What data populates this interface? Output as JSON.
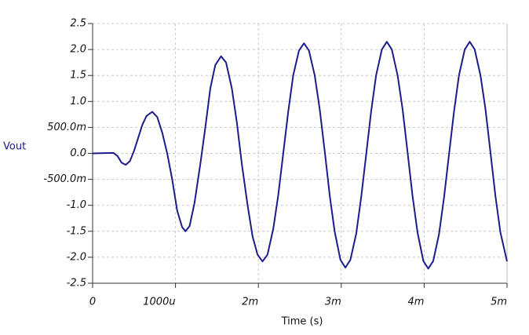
{
  "chart_data": {
    "type": "line",
    "y_label": "Vout",
    "x_label": "Time (s)",
    "xlim": [
      0,
      0.005
    ],
    "ylim": [
      -2.5,
      2.5
    ],
    "xticks": [
      0,
      {
        "value": 0.001,
        "label": "1000u"
      },
      {
        "value": 0.002,
        "label": "2m"
      },
      {
        "value": 0.003,
        "label": "3m"
      },
      {
        "value": 0.004,
        "label": "4m"
      },
      {
        "value": 0.005,
        "label": "5m"
      }
    ],
    "yticks": [
      2.5,
      {
        "value": 2,
        "label": "2.0"
      },
      1.5,
      {
        "value": 1,
        "label": "1.0"
      },
      {
        "value": 0.5,
        "label": "500.0m"
      },
      {
        "value": 0,
        "label": "0.0"
      },
      {
        "value": -0.5,
        "label": "-500.0m"
      },
      {
        "value": -1,
        "label": "-1.0"
      },
      -1.5,
      {
        "value": -2,
        "label": "-2.0"
      },
      -2.5
    ],
    "grid": true,
    "series": [
      {
        "color": "#1c1c8a",
        "x": [
          0,
          0.00025,
          0.0003,
          0.00035,
          0.0004,
          0.00045,
          0.0005,
          0.00055,
          0.0006,
          0.00065,
          0.00072,
          0.00078,
          0.00084,
          0.0009,
          0.00096,
          0.00102,
          0.00108,
          0.00112,
          0.00117,
          0.00123,
          0.0013,
          0.00136,
          0.00142,
          0.00148,
          0.00155,
          0.00161,
          0.00168,
          0.00174,
          0.0018,
          0.00187,
          0.00193,
          0.00199,
          0.00205,
          0.00211,
          0.00218,
          0.00224,
          0.0023,
          0.00236,
          0.00242,
          0.00249,
          0.00255,
          0.00261,
          0.00268,
          0.00274,
          0.0028,
          0.00286,
          0.00292,
          0.00299,
          0.00305,
          0.00311,
          0.00318,
          0.00324,
          0.0033,
          0.00336,
          0.00342,
          0.00349,
          0.00355,
          0.00361,
          0.00368,
          0.00374,
          0.0038,
          0.00386,
          0.00392,
          0.00399,
          0.00405,
          0.00411,
          0.00418,
          0.00424,
          0.0043,
          0.00436,
          0.00442,
          0.00449,
          0.00455,
          0.00461,
          0.00468,
          0.00474,
          0.0048,
          0.00486,
          0.00492,
          0.005
        ],
        "values": [
          0,
          0.01,
          -0.05,
          -0.18,
          -0.22,
          -0.15,
          0.05,
          0.3,
          0.55,
          0.72,
          0.8,
          0.7,
          0.4,
          0,
          -0.5,
          -1.1,
          -1.42,
          -1.5,
          -1.4,
          -0.95,
          -0.2,
          0.5,
          1.25,
          1.7,
          1.87,
          1.75,
          1.25,
          0.6,
          -0.2,
          -1.0,
          -1.6,
          -1.95,
          -2.08,
          -1.95,
          -1.45,
          -0.8,
          0,
          0.8,
          1.5,
          1.98,
          2.12,
          1.98,
          1.5,
          0.85,
          0.05,
          -0.8,
          -1.5,
          -2.05,
          -2.2,
          -2.05,
          -1.55,
          -0.85,
          -0.03,
          0.8,
          1.5,
          2.0,
          2.15,
          2.0,
          1.5,
          0.85,
          0.02,
          -0.82,
          -1.52,
          -2.07,
          -2.22,
          -2.07,
          -1.55,
          -0.85,
          -0.02,
          0.8,
          1.5,
          2.0,
          2.15,
          2.0,
          1.5,
          0.85,
          0.02,
          -0.82,
          -1.52,
          -2.08
        ]
      }
    ]
  }
}
